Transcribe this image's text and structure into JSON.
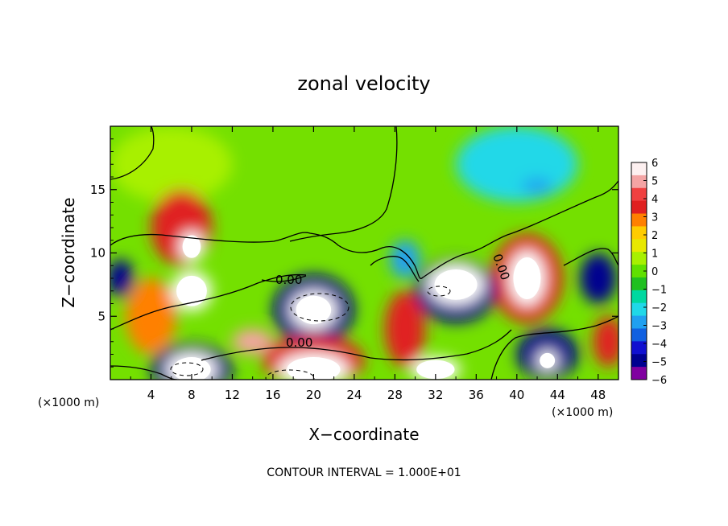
{
  "chart_data": {
    "type": "heatmap",
    "title": "zonal velocity",
    "xlabel": "X−coordinate",
    "ylabel": "Z−coordinate",
    "x_unit_note": "(×1000 m)",
    "y_unit_note": "(×1000 m)",
    "xlim": [
      0,
      50
    ],
    "ylim": [
      0,
      20
    ],
    "x_ticks": [
      4,
      8,
      12,
      16,
      20,
      24,
      28,
      32,
      36,
      40,
      44,
      48
    ],
    "x_tick_labels": [
      "4",
      "8",
      "12",
      "16",
      "20",
      "24",
      "28",
      "32",
      "36",
      "40",
      "44",
      "48"
    ],
    "y_ticks": [
      5,
      10,
      15
    ],
    "y_tick_labels": [
      "5",
      "10",
      "15"
    ],
    "colorbar": {
      "min": -6,
      "max": 6,
      "ticks": [
        6,
        5,
        4,
        3,
        2,
        1,
        0,
        -1,
        -2,
        -3,
        -4,
        -5,
        -6
      ],
      "tick_labels": [
        "6",
        "5",
        "4",
        "3",
        "2",
        "1",
        "0",
        "−1",
        "−2",
        "−3",
        "−4",
        "−5",
        "−6"
      ],
      "colors": [
        "#fdf0f0",
        "#f4a4a4",
        "#f04040",
        "#e02020",
        "#ff8000",
        "#ffcc00",
        "#e8e800",
        "#a8f000",
        "#60e000",
        "#20c020",
        "#00d8a0",
        "#20d8e8",
        "#20a0f0",
        "#1060e0",
        "#1010d0",
        "#000090",
        "#8000a0"
      ]
    },
    "contour_labels": [
      "0.00",
      "0.00",
      "0.00"
    ],
    "footer": "CONTOUR INTERVAL = 1.000E+01",
    "features": [
      {
        "x": 8,
        "z": 10.5,
        "value": 6,
        "rx": 1.2,
        "rz": 1.2
      },
      {
        "x": 8,
        "z": 7,
        "value": 6,
        "rx": 2.0,
        "rz": 1.6
      },
      {
        "x": 7,
        "z": 12,
        "value": 4,
        "rx": 3,
        "rz": 3
      },
      {
        "x": 4,
        "z": 5,
        "value": 3,
        "rx": 2.5,
        "rz": 3
      },
      {
        "x": 1,
        "z": 8,
        "value": -5,
        "rx": 1.3,
        "rz": 1.5
      },
      {
        "x": 20,
        "z": 5.5,
        "value": 6,
        "rx": 2.3,
        "rz": 1.5
      },
      {
        "x": 20,
        "z": 5.5,
        "value": -5,
        "rx": 4,
        "rz": 2.8
      },
      {
        "x": 34,
        "z": 7.5,
        "value": 6,
        "rx": 2.8,
        "rz": 1.6
      },
      {
        "x": 34,
        "z": 7,
        "value": -5,
        "rx": 4,
        "rz": 2.5
      },
      {
        "x": 41,
        "z": 8,
        "value": 6,
        "rx": 1.8,
        "rz": 2.2
      },
      {
        "x": 41,
        "z": 8,
        "value": 4,
        "rx": 3.5,
        "rz": 3.5
      },
      {
        "x": 48,
        "z": 8,
        "value": -5,
        "rx": 1.8,
        "rz": 2
      },
      {
        "x": 8,
        "z": 0.8,
        "value": 6,
        "rx": 2.5,
        "rz": 1.3
      },
      {
        "x": 8,
        "z": 0.8,
        "value": -5,
        "rx": 4,
        "rz": 2
      },
      {
        "x": 20,
        "z": 0.8,
        "value": 6,
        "rx": 3.5,
        "rz": 1.3
      },
      {
        "x": 20,
        "z": 1.5,
        "value": 4,
        "rx": 5,
        "rz": 2
      },
      {
        "x": 14,
        "z": 3,
        "value": 5,
        "rx": 2,
        "rz": 1
      },
      {
        "x": 29,
        "z": 4,
        "value": 4,
        "rx": 2,
        "rz": 3
      },
      {
        "x": 32,
        "z": 0.8,
        "value": 6,
        "rx": 2.5,
        "rz": 1
      },
      {
        "x": 43,
        "z": 2,
        "value": -5,
        "rx": 3,
        "rz": 2
      },
      {
        "x": 43,
        "z": 1.5,
        "value": 6,
        "rx": 1,
        "rz": 0.8
      },
      {
        "x": 49,
        "z": 3,
        "value": 4,
        "rx": 1.5,
        "rz": 2
      },
      {
        "x": 40,
        "z": 17,
        "value": -2,
        "rx": 6,
        "rz": 3
      },
      {
        "x": 42,
        "z": 15.3,
        "value": -3,
        "rx": 1.5,
        "rz": 0.6
      },
      {
        "x": 6,
        "z": 17,
        "value": 1,
        "rx": 6,
        "rz": 3
      },
      {
        "x": 29,
        "z": 9.5,
        "value": -3,
        "rx": 1.5,
        "rz": 1.5
      }
    ]
  }
}
